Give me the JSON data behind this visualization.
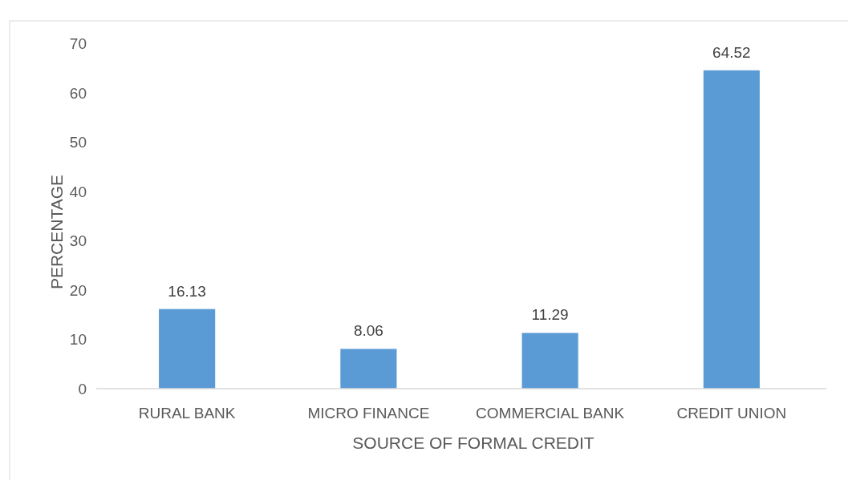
{
  "chart_data": {
    "type": "bar",
    "xlabel": "SOURCE OF FORMAL CREDIT",
    "ylabel": "PERCENTAGE",
    "categories": [
      "RURAL BANK",
      "MICRO FINANCE",
      "COMMERCIAL BANK",
      "CREDIT UNION"
    ],
    "values": [
      16.13,
      8.06,
      11.29,
      64.52
    ],
    "color": "#5b9bd5",
    "ylim": [
      0,
      70
    ],
    "yticks": [
      0,
      10,
      20,
      30,
      40,
      50,
      60,
      70
    ],
    "grid": false,
    "data_labels": true
  }
}
